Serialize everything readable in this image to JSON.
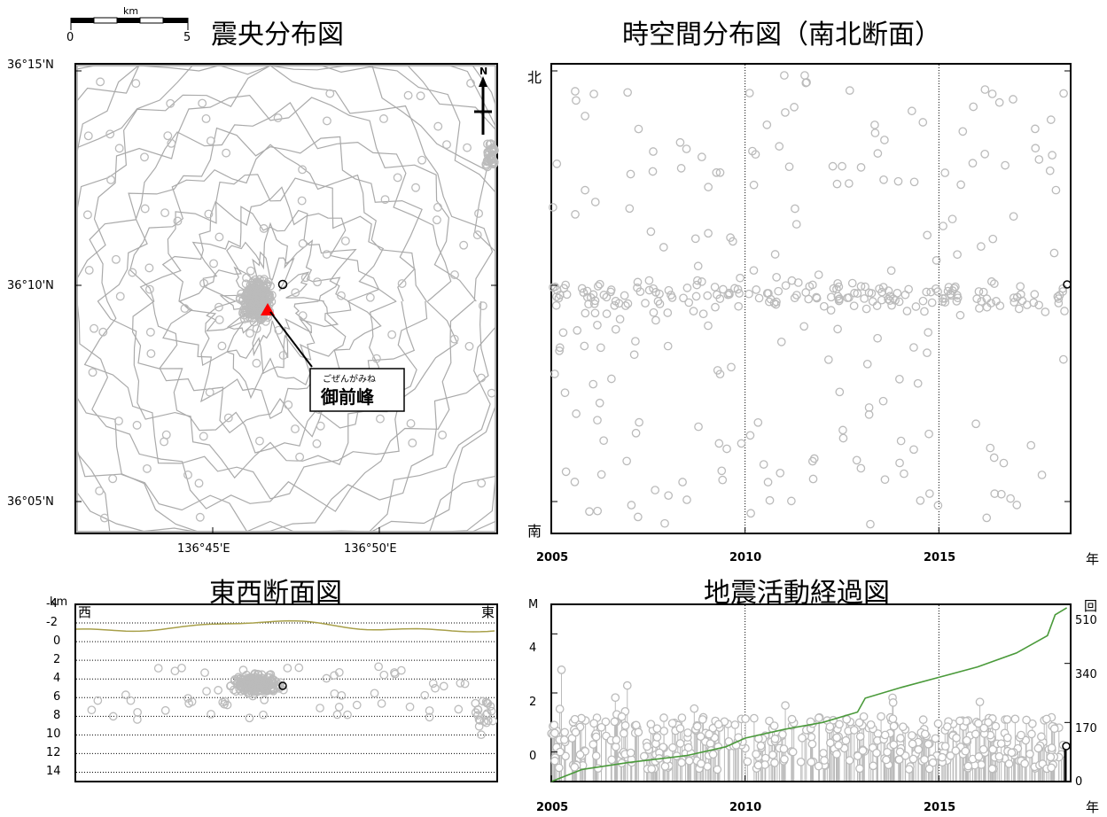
{
  "titles": {
    "epicenter": "震央分布図",
    "spacetime": "時空間分布図（南北断面）",
    "crosssection": "東西断面図",
    "activity": "地震活動経過図"
  },
  "scale_bar": {
    "unit": "km",
    "min_label": "0",
    "max_label": "5"
  },
  "map": {
    "lat_labels": [
      "36°15'N",
      "36°10'N",
      "36°05'N"
    ],
    "lon_labels": [
      "136°45'E",
      "136°50'E"
    ],
    "north_label": "N",
    "volcano": {
      "furigana": "ごぜんがみね",
      "name": "御前峰",
      "color": "#ff0000"
    }
  },
  "spacetime_axis": {
    "north": "北",
    "south": "南",
    "year_unit": "年"
  },
  "cross_section": {
    "unit": "km",
    "west": "西",
    "east": "東",
    "depth_ticks": [
      "-4",
      "-2",
      "0",
      "2",
      "4",
      "6",
      "8",
      "10",
      "12",
      "14"
    ]
  },
  "activity_axis": {
    "m_label": "M",
    "m_ticks": [
      "0",
      "2",
      "4"
    ],
    "count_label": "回",
    "count_ticks": [
      "0",
      "170",
      "340",
      "510"
    ],
    "year_unit": "年"
  },
  "chart_data": [
    {
      "type": "scatter",
      "title": "時空間分布図（南北断面）",
      "xlabel": "年",
      "x_ticks": [
        "2005",
        "2010",
        "2015"
      ],
      "xlim": [
        2005,
        2018.4
      ],
      "y_range_labels": [
        "北",
        "南"
      ],
      "marker_color": "#bbbbbb",
      "reference_lines": [
        2010,
        2015
      ]
    },
    {
      "type": "line",
      "title": "地震活動経過図",
      "xlabel": "年",
      "x_ticks": [
        "2005",
        "2010",
        "2015"
      ],
      "xlim": [
        2005,
        2018.4
      ],
      "ylabel": "M",
      "ylim": [
        -1,
        5
      ],
      "y2label": "回",
      "y2lim": [
        0,
        510
      ],
      "series": [
        {
          "kind": "cumulative",
          "color": "#4a9a3a",
          "points": [
            [
              2005,
              0
            ],
            [
              2005.8,
              35
            ],
            [
              2007,
              55
            ],
            [
              2008.5,
              75
            ],
            [
              2009.5,
              100
            ],
            [
              2010,
              125
            ],
            [
              2011,
              150
            ],
            [
              2012,
              170
            ],
            [
              2012.9,
              200
            ],
            [
              2013.1,
              240
            ],
            [
              2014,
              270
            ],
            [
              2015,
              300
            ],
            [
              2016,
              330
            ],
            [
              2017,
              370
            ],
            [
              2017.8,
              420
            ],
            [
              2018,
              480
            ],
            [
              2018.3,
              500
            ]
          ]
        }
      ],
      "reference_lines": [
        2010,
        2015
      ]
    }
  ]
}
